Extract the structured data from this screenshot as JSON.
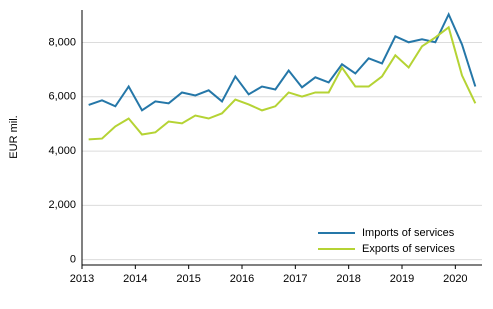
{
  "chart_data": {
    "type": "line",
    "y_label": "EUR mil.",
    "x": [
      2013.125,
      2013.375,
      2013.625,
      2013.875,
      2014.125,
      2014.375,
      2014.625,
      2014.875,
      2015.125,
      2015.375,
      2015.625,
      2015.875,
      2016.125,
      2016.375,
      2016.625,
      2016.875,
      2017.125,
      2017.375,
      2017.625,
      2017.875,
      2018.125,
      2018.375,
      2018.625,
      2018.875,
      2019.125,
      2019.375,
      2019.625,
      2019.875,
      2020.125,
      2020.375
    ],
    "series": [
      {
        "name": "Imports of services",
        "color": "#2577a8",
        "values": [
          5700,
          5870,
          5650,
          6380,
          5500,
          5830,
          5760,
          6160,
          6050,
          6240,
          5830,
          6750,
          6090,
          6380,
          6270,
          6970,
          6350,
          6720,
          6530,
          7200,
          6860,
          7420,
          7230,
          8230,
          8010,
          8120,
          8010,
          9040,
          7930,
          6380
        ]
      },
      {
        "name": "Exports of services",
        "color": "#b5d334",
        "values": [
          4430,
          4460,
          4910,
          5200,
          4610,
          4690,
          5090,
          5020,
          5310,
          5200,
          5390,
          5900,
          5720,
          5500,
          5650,
          6160,
          6010,
          6160,
          6160,
          7080,
          6380,
          6380,
          6750,
          7530,
          7080,
          7860,
          8190,
          8560,
          6790,
          5760
        ]
      }
    ],
    "xlim": [
      2013,
      2020.5
    ],
    "xticks": [
      2013,
      2014,
      2015,
      2016,
      2017,
      2018,
      2019,
      2020
    ],
    "ylim": [
      -200,
      9200
    ],
    "yticks": [
      0,
      {
        "value": 2000,
        "label": "2,000"
      },
      {
        "value": 4000,
        "label": "4,000"
      },
      {
        "value": 6000,
        "label": "6,000"
      },
      {
        "value": 8000,
        "label": "8,000"
      }
    ],
    "grid": true,
    "legend": "lower-right"
  }
}
